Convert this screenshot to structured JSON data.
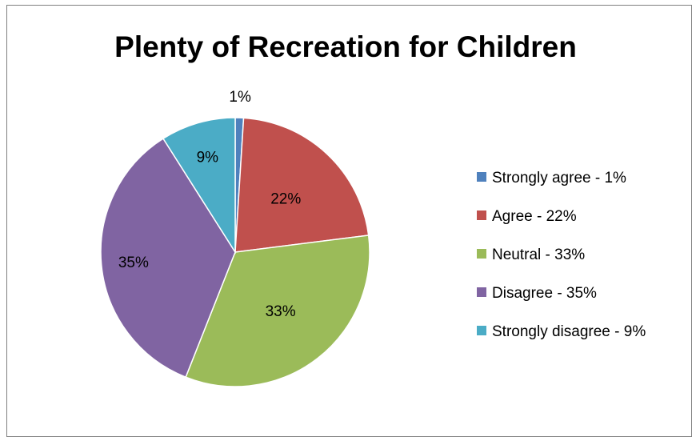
{
  "chart_data": {
    "type": "pie",
    "title": "Plenty of Recreation for Children",
    "categories": [
      "Strongly agree - 1%",
      "Agree - 22%",
      "Neutral - 33%",
      "Disagree - 35%",
      "Strongly disagree - 9%"
    ],
    "values": [
      1,
      22,
      33,
      35,
      9
    ],
    "data_labels": [
      "1%",
      "22%",
      "33%",
      "35%",
      "9%"
    ],
    "colors": [
      "#4f81bd",
      "#c0504d",
      "#9bbb59",
      "#8064a2",
      "#4bacc6"
    ],
    "legend": "right",
    "start_angle": "12 o'clock",
    "direction": "clockwise"
  }
}
